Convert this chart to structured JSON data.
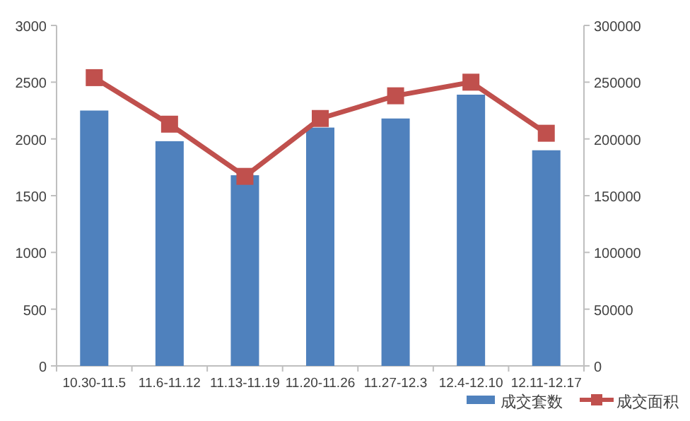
{
  "chart_data": {
    "type": "bar",
    "categories": [
      "10.30-11.5",
      "11.6-11.12",
      "11.13-11.19",
      "11.20-11.26",
      "11.27-12.3",
      "12.4-12.10",
      "12.11-12.17"
    ],
    "series": [
      {
        "name": "成交套数",
        "color": "#4f81bd",
        "values": [
          2250,
          1980,
          1680,
          2100,
          2180,
          2390,
          1900
        ]
      },
      {
        "name": "成交面积",
        "type": "line",
        "axis": "y2",
        "color": "#c0504d",
        "marker": "square",
        "values": [
          254000,
          213000,
          167000,
          218000,
          238000,
          250000,
          205000
        ]
      }
    ],
    "ylim": [
      0,
      3000
    ],
    "yticks": [
      0,
      500,
      1000,
      1500,
      2000,
      2500,
      3000
    ],
    "y2lim": [
      0,
      300000
    ],
    "y2ticks": [
      0,
      50000,
      100000,
      150000,
      200000,
      250000,
      300000
    ],
    "grid": false,
    "legend": "bottom right"
  }
}
